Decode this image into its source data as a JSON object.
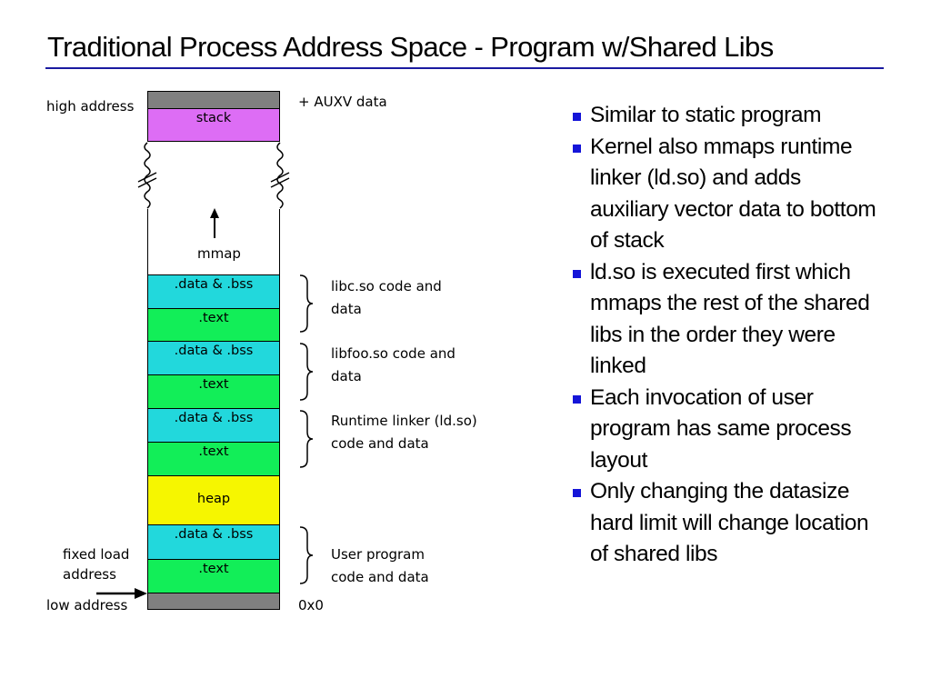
{
  "title": "Traditional Process Address Space - Program w/Shared Libs",
  "colors": {
    "stack": "#dd6df5",
    "data": "#22d8dc",
    "text": "#12ee58",
    "heap": "#f6f600",
    "guard": "#808080",
    "bullet": "#1515d8",
    "rule": "#1a1aa0"
  },
  "diagram": {
    "stack": "stack",
    "mmap": "mmap",
    "heap": "heap",
    "data_bss": ".data & .bss",
    "text": ".text",
    "high_address": "high address",
    "low_address": "low address",
    "fixed_load": [
      "fixed load",
      "address"
    ],
    "auxv": "+ AUXV data",
    "zero": "0x0",
    "groups": [
      [
        "libc.so code and",
        "data"
      ],
      [
        "libfoo.so code and",
        "data"
      ],
      [
        "Runtime linker (ld.so)",
        "code and data"
      ],
      [
        "User program",
        "code and data"
      ]
    ]
  },
  "bullets": [
    [
      "Similar to static program"
    ],
    [
      "Kernel also mmaps runtime",
      "linker (ld.so) and adds",
      "auxiliary vector data to bottom",
      "of stack"
    ],
    [
      "ld.so is executed first which",
      "mmaps the rest of the shared",
      "libs in the order they were",
      "linked"
    ],
    [
      "Each invocation of user",
      "program has same process",
      "layout"
    ],
    [
      "Only changing the datasize",
      "hard limit will change location",
      "of shared libs"
    ]
  ]
}
